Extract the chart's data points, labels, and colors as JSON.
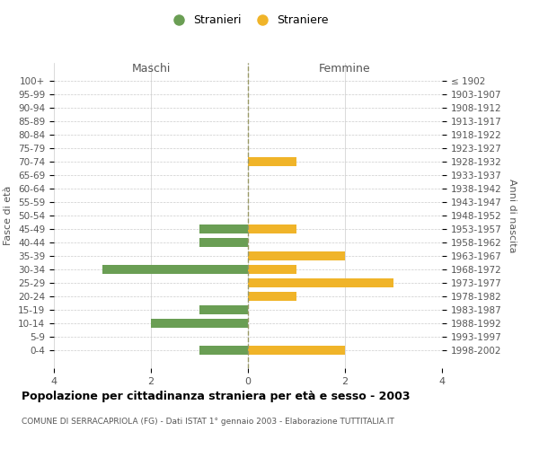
{
  "age_groups": [
    "100+",
    "95-99",
    "90-94",
    "85-89",
    "80-84",
    "75-79",
    "70-74",
    "65-69",
    "60-64",
    "55-59",
    "50-54",
    "45-49",
    "40-44",
    "35-39",
    "30-34",
    "25-29",
    "20-24",
    "15-19",
    "10-14",
    "5-9",
    "0-4"
  ],
  "birth_years": [
    "≤ 1902",
    "1903-1907",
    "1908-1912",
    "1913-1917",
    "1918-1922",
    "1923-1927",
    "1928-1932",
    "1933-1937",
    "1938-1942",
    "1943-1947",
    "1948-1952",
    "1953-1957",
    "1958-1962",
    "1963-1967",
    "1968-1972",
    "1973-1977",
    "1978-1982",
    "1983-1987",
    "1988-1992",
    "1993-1997",
    "1998-2002"
  ],
  "maschi": [
    0,
    0,
    0,
    0,
    0,
    0,
    0,
    0,
    0,
    0,
    0,
    1,
    1,
    0,
    3,
    0,
    0,
    1,
    2,
    0,
    1
  ],
  "femmine": [
    0,
    0,
    0,
    0,
    0,
    0,
    1,
    0,
    0,
    0,
    0,
    1,
    0,
    2,
    1,
    3,
    1,
    0,
    0,
    0,
    2
  ],
  "color_maschi": "#6a9e54",
  "color_femmine": "#f0b429",
  "xlabel_left": "Maschi",
  "xlabel_right": "Femmine",
  "ylabel_left": "Fasce di età",
  "ylabel_right": "Anni di nascita",
  "legend_stranieri": "Stranieri",
  "legend_straniere": "Straniere",
  "title": "Popolazione per cittadinanza straniera per età e sesso - 2003",
  "subtitle": "COMUNE DI SERRACAPRIOLA (FG) - Dati ISTAT 1° gennaio 2003 - Elaborazione TUTTITALIA.IT",
  "xlim": 4,
  "background_color": "#ffffff",
  "grid_color": "#cccccc",
  "axis_zero_color": "#999966"
}
